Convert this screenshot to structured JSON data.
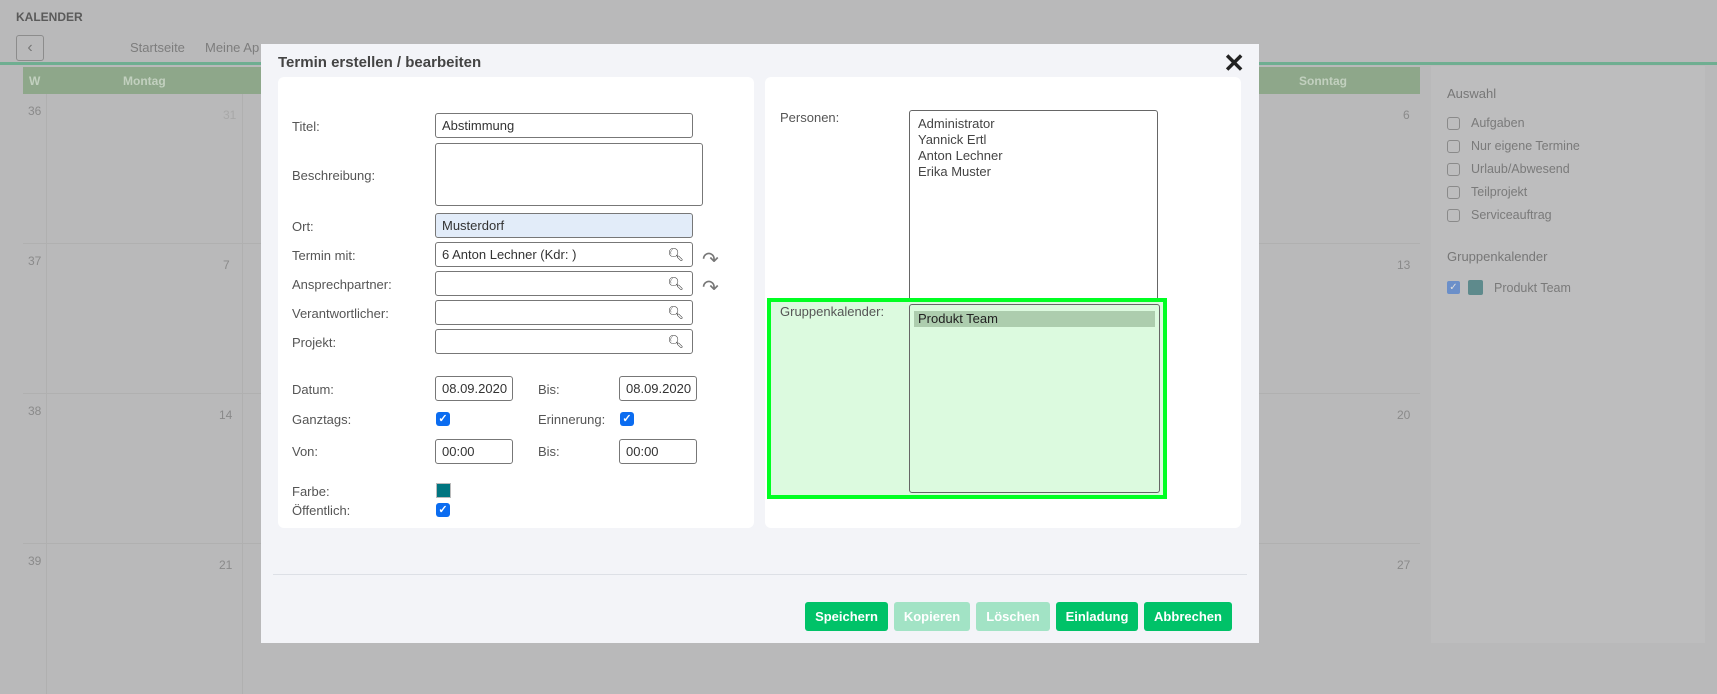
{
  "app": {
    "title": "KALENDER",
    "back_icon": "chevron-left-icon"
  },
  "nav": {
    "tabs": [
      "Startseite",
      "Meine Ap"
    ]
  },
  "calendar": {
    "header": {
      "week": "W",
      "days": [
        "Montag",
        "Sonntag"
      ]
    },
    "rows": [
      {
        "week": "36",
        "monday": "31",
        "sunday": "6"
      },
      {
        "week": "37",
        "monday": "7",
        "sunday": "13"
      },
      {
        "week": "38",
        "monday": "14",
        "sunday": "20"
      },
      {
        "week": "39",
        "monday": "21",
        "sunday": "27"
      }
    ],
    "header_color": "#8ea78a"
  },
  "sidebar": {
    "auswahl_title": "Auswahl",
    "items": [
      "Aufgaben",
      "Nur eigene Termine",
      "Urlaub/Abwesend",
      "Teilprojekt",
      "Serviceauftrag"
    ],
    "group_title": "Gruppenkalender",
    "group_item": {
      "label": "Produkt Team",
      "checked": true,
      "color": "#5e8a8c"
    }
  },
  "modal": {
    "title": "Termin erstellen / bearbeiten",
    "form": {
      "titel_label": "Titel:",
      "titel_value": "Abstimmung",
      "beschreibung_label": "Beschreibung:",
      "beschreibung_value": "",
      "ort_label": "Ort:",
      "ort_value": "Musterdorf",
      "termin_label": "Termin mit:",
      "termin_value": "6 Anton Lechner (Kdr: )",
      "ansprech_label": "Ansprechpartner:",
      "ansprech_value": "",
      "verant_label": "Verantwortlicher:",
      "verant_value": "",
      "projekt_label": "Projekt:",
      "projekt_value": "",
      "datum_label": "Datum:",
      "datum_value": "08.09.2020",
      "bis_label": "Bis:",
      "bis_datum_value": "08.09.2020",
      "ganztags_label": "Ganztags:",
      "ganztags": true,
      "erinnerung_label": "Erinnerung:",
      "erinnerung": true,
      "von_label": "Von:",
      "von_value": "00:00",
      "bis_zeit_value": "00:00",
      "farbe_label": "Farbe:",
      "farbe_color": "#007580",
      "oeffentlich_label": "Öffentlich:",
      "oeffentlich": true
    },
    "personen_label": "Personen:",
    "personen": [
      "Administrator",
      "Yannick Ertl",
      "Anton Lechner",
      "Erika Muster"
    ],
    "gruppen_label": "Gruppenkalender:",
    "gruppen": [
      "Produkt Team"
    ],
    "highlight_color": "#00ff22",
    "buttons": {
      "save": "Speichern",
      "copy": "Kopieren",
      "delete": "Löschen",
      "invite": "Einladung",
      "cancel": "Abbrechen"
    }
  }
}
